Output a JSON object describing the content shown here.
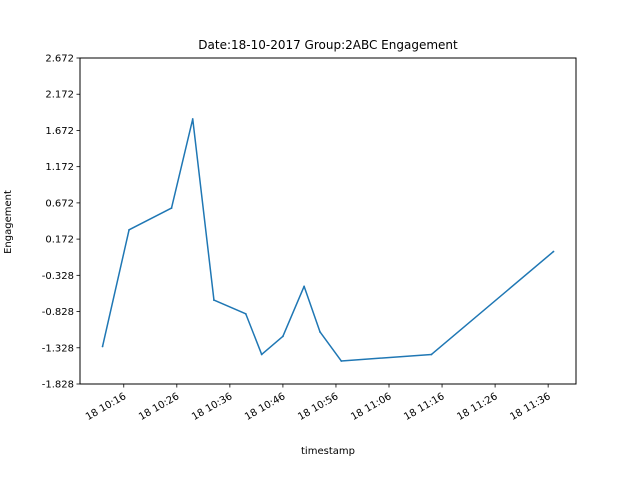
{
  "chart_data": {
    "type": "line",
    "title": "Date:18-10-2017 Group:2ABC Engagement",
    "xlabel": "timestamp",
    "ylabel": "Engagement",
    "ylim": [
      -1.828,
      2.672
    ],
    "y_ticks": [
      "-1.828",
      "-1.328",
      "-0.828",
      "-0.328",
      "0.172",
      "0.672",
      "1.172",
      "1.672",
      "2.172",
      "2.672"
    ],
    "x_ticks": [
      "18 10:16",
      "18 10:26",
      "18 10:36",
      "18 10:46",
      "18 10:56",
      "18 11:06",
      "18 11:16",
      "18 11:26",
      "18 11:36"
    ],
    "grid": false,
    "series": [
      {
        "color": "#1f77b4",
        "x": [
          "18 10:12",
          "18 10:17",
          "18 10:25",
          "18 10:29",
          "18 10:33",
          "18 10:39",
          "18 10:42",
          "18 10:46",
          "18 10:50",
          "18 10:53",
          "18 10:57",
          "18 11:14",
          "18 11:37"
        ],
        "y": [
          -1.31,
          0.3,
          0.6,
          1.83,
          -0.67,
          -0.86,
          -1.42,
          -1.17,
          -0.48,
          -1.11,
          -1.51,
          -1.42,
          0.0
        ]
      }
    ]
  }
}
